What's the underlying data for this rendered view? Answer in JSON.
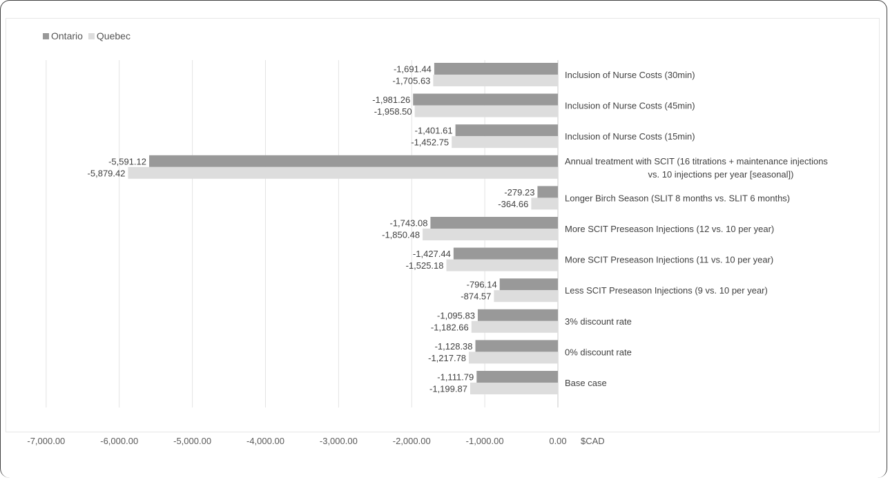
{
  "chart_data": {
    "type": "bar",
    "orientation": "horizontal",
    "unit_label": "$CAD",
    "xlim": [
      -7000,
      0
    ],
    "x_ticks": [
      "-7,000.00",
      "-6,000.00",
      "-5,000.00",
      "-4,000.00",
      "-3,000.00",
      "-2,000.00",
      "-1,000.00",
      "0.00"
    ],
    "grid": true,
    "legend_position": "top-left",
    "categories": [
      "Inclusion of Nurse Costs (30min)",
      "Inclusion of Nurse Costs (45min)",
      "Inclusion of Nurse Costs (15min)",
      "Annual treatment with SCIT (16 titrations + maintenance injections vs. 10 injections per year [seasonal])",
      "Longer Birch Season (SLIT 8 months vs. SLIT 6 months)",
      "More SCIT Preseason Injections (12 vs. 10 per year)",
      "More SCIT Preseason Injections (11 vs. 10 per year)",
      "Less SCIT Preseason Injections (9 vs. 10 per year)",
      "3% discount rate",
      "0% discount rate",
      "Base case"
    ],
    "category_lines": [
      [
        "Inclusion of Nurse Costs (30min)"
      ],
      [
        "Inclusion of Nurse Costs (45min)"
      ],
      [
        "Inclusion of Nurse Costs (15min)"
      ],
      [
        "Annual treatment with SCIT (16 titrations + maintenance injections",
        "vs. 10 injections per year [seasonal])"
      ],
      [
        "Longer Birch Season (SLIT 8 months vs. SLIT 6 months)"
      ],
      [
        "More SCIT Preseason Injections (12 vs. 10 per year)"
      ],
      [
        "More SCIT Preseason Injections (11 vs. 10 per year)"
      ],
      [
        "Less SCIT Preseason Injections (9 vs. 10 per year)"
      ],
      [
        "3% discount rate"
      ],
      [
        "0% discount rate"
      ],
      [
        "Base case"
      ]
    ],
    "series": [
      {
        "name": "Ontario",
        "color": "#999999",
        "values": [
          -1691.44,
          -1981.26,
          -1401.61,
          -5591.12,
          -279.23,
          -1743.08,
          -1427.44,
          -796.14,
          -1095.83,
          -1128.38,
          -1111.79
        ],
        "labels": [
          "-1,691.44",
          "-1,981.26",
          "-1,401.61",
          "-5,591.12",
          "-279.23",
          "-1,743.08",
          "-1,427.44",
          "-796.14",
          "-1,095.83",
          "-1,128.38",
          "-1,111.79"
        ]
      },
      {
        "name": "Quebec",
        "color": "#dddddd",
        "values": [
          -1705.63,
          -1958.5,
          -1452.75,
          -5879.42,
          -364.66,
          -1850.48,
          -1525.18,
          -874.57,
          -1182.66,
          -1217.78,
          -1199.87
        ],
        "labels": [
          "-1,705.63",
          "-1,958.50",
          "-1,452.75",
          "-5,879.42",
          "-364.66",
          "-1,850.48",
          "-1,525.18",
          "-874.57",
          "-1,182.66",
          "-1,217.78",
          "-1,199.87"
        ]
      }
    ]
  }
}
